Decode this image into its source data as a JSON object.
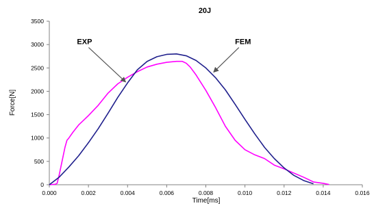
{
  "chart_data": {
    "type": "line",
    "title": "20J",
    "xlabel": "Time[ms]",
    "ylabel": "Force[N]",
    "xlim": [
      0,
      0.016
    ],
    "ylim": [
      0,
      3500
    ],
    "x_ticks": [
      "0.000",
      "0.002",
      "0.004",
      "0.006",
      "0.008",
      "0.010",
      "0.012",
      "0.014",
      "0.016"
    ],
    "y_ticks": [
      "0",
      "500",
      "1000",
      "1500",
      "2000",
      "2500",
      "3000",
      "3500"
    ],
    "grid": false,
    "legend": "none",
    "series": [
      {
        "name": "EXP",
        "color": "#ff00ff",
        "points": [
          [
            0.0,
            0
          ],
          [
            0.0003,
            10
          ],
          [
            0.0004,
            30
          ],
          [
            0.0005,
            200
          ],
          [
            0.0006,
            400
          ],
          [
            0.0007,
            600
          ],
          [
            0.0008,
            800
          ],
          [
            0.0009,
            950
          ],
          [
            0.001,
            1000
          ],
          [
            0.0012,
            1120
          ],
          [
            0.0015,
            1280
          ],
          [
            0.0018,
            1400
          ],
          [
            0.002,
            1480
          ],
          [
            0.0025,
            1700
          ],
          [
            0.003,
            1960
          ],
          [
            0.0035,
            2160
          ],
          [
            0.004,
            2300
          ],
          [
            0.0045,
            2420
          ],
          [
            0.005,
            2520
          ],
          [
            0.0055,
            2580
          ],
          [
            0.006,
            2620
          ],
          [
            0.0065,
            2640
          ],
          [
            0.0068,
            2640
          ],
          [
            0.007,
            2600
          ],
          [
            0.0072,
            2520
          ],
          [
            0.0075,
            2350
          ],
          [
            0.008,
            2020
          ],
          [
            0.0085,
            1650
          ],
          [
            0.009,
            1250
          ],
          [
            0.0095,
            950
          ],
          [
            0.01,
            750
          ],
          [
            0.0105,
            640
          ],
          [
            0.011,
            560
          ],
          [
            0.0115,
            420
          ],
          [
            0.012,
            340
          ],
          [
            0.0125,
            250
          ],
          [
            0.013,
            160
          ],
          [
            0.0135,
            60
          ],
          [
            0.014,
            30
          ],
          [
            0.0143,
            5
          ]
        ]
      },
      {
        "name": "FEM",
        "color": "#1f1f8c",
        "points": [
          [
            0.0,
            0
          ],
          [
            0.0005,
            160
          ],
          [
            0.001,
            380
          ],
          [
            0.0015,
            620
          ],
          [
            0.002,
            900
          ],
          [
            0.0025,
            1200
          ],
          [
            0.003,
            1530
          ],
          [
            0.0035,
            1870
          ],
          [
            0.004,
            2180
          ],
          [
            0.0045,
            2460
          ],
          [
            0.005,
            2640
          ],
          [
            0.0055,
            2740
          ],
          [
            0.006,
            2790
          ],
          [
            0.0065,
            2800
          ],
          [
            0.007,
            2760
          ],
          [
            0.0075,
            2660
          ],
          [
            0.008,
            2500
          ],
          [
            0.0085,
            2290
          ],
          [
            0.009,
            2030
          ],
          [
            0.0095,
            1720
          ],
          [
            0.01,
            1400
          ],
          [
            0.0105,
            1090
          ],
          [
            0.011,
            800
          ],
          [
            0.0115,
            560
          ],
          [
            0.012,
            360
          ],
          [
            0.0125,
            200
          ],
          [
            0.013,
            90
          ],
          [
            0.0135,
            20
          ]
        ]
      }
    ],
    "annotations": [
      {
        "label": "EXP",
        "text_at": [
          0.0018,
          3010
        ],
        "arrow_to": [
          0.0039,
          2200
        ]
      },
      {
        "label": "FEM",
        "text_at": [
          0.0099,
          3010
        ],
        "arrow_to": [
          0.0084,
          2410
        ]
      }
    ]
  }
}
